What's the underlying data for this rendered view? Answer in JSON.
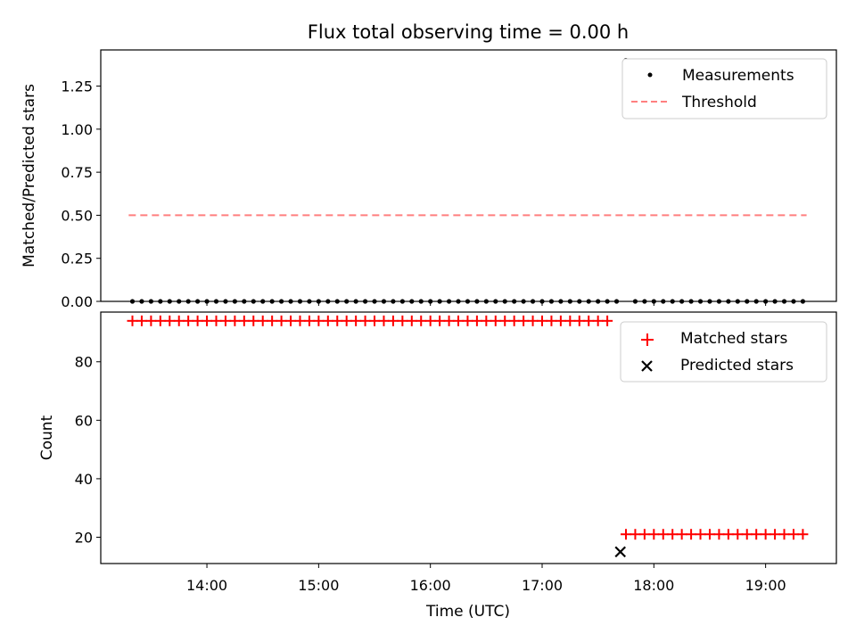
{
  "chart_data": [
    {
      "type": "scatter",
      "title": "Flux total observing time = 0.00 h",
      "xlabel": "",
      "ylabel": "Matched/Predicted stars",
      "xlim": [
        "13:03",
        "19:38"
      ],
      "ylim": [
        0,
        1.46
      ],
      "yticks": [
        "0.00",
        "0.25",
        "0.50",
        "0.75",
        "1.00",
        "1.25"
      ],
      "ytick_values": [
        0,
        0.25,
        0.5,
        0.75,
        1.0,
        1.25
      ],
      "legend": "upper right",
      "series": [
        {
          "name": "Measurements",
          "marker": "dot",
          "color": "#000000",
          "x": [
            "13:20",
            "13:25",
            "13:30",
            "13:35",
            "13:40",
            "13:45",
            "13:50",
            "13:55",
            "14:00",
            "14:05",
            "14:10",
            "14:15",
            "14:20",
            "14:25",
            "14:30",
            "14:35",
            "14:40",
            "14:45",
            "14:50",
            "14:55",
            "15:00",
            "15:05",
            "15:10",
            "15:15",
            "15:20",
            "15:25",
            "15:30",
            "15:35",
            "15:40",
            "15:45",
            "15:50",
            "15:55",
            "16:00",
            "16:05",
            "16:10",
            "16:15",
            "16:20",
            "16:25",
            "16:30",
            "16:35",
            "16:40",
            "16:45",
            "16:50",
            "16:55",
            "17:00",
            "17:05",
            "17:10",
            "17:15",
            "17:20",
            "17:25",
            "17:30",
            "17:35",
            "17:40",
            "17:45",
            "17:50",
            "17:55",
            "18:00",
            "18:05",
            "18:10",
            "18:15",
            "18:20",
            "18:25",
            "18:30",
            "18:35",
            "18:40",
            "18:45",
            "18:50",
            "18:55",
            "19:00",
            "19:05",
            "19:10",
            "19:15",
            "19:20"
          ],
          "y": [
            0,
            0,
            0,
            0,
            0,
            0,
            0,
            0,
            0,
            0,
            0,
            0,
            0,
            0,
            0,
            0,
            0,
            0,
            0,
            0,
            0,
            0,
            0,
            0,
            0,
            0,
            0,
            0,
            0,
            0,
            0,
            0,
            0,
            0,
            0,
            0,
            0,
            0,
            0,
            0,
            0,
            0,
            0,
            0,
            0,
            0,
            0,
            0,
            0,
            0,
            0,
            0,
            0,
            1.4,
            0,
            0,
            0,
            0,
            0,
            0,
            0,
            0,
            0,
            0,
            0,
            0,
            0,
            0,
            0,
            0,
            0,
            0,
            0
          ]
        },
        {
          "name": "Threshold",
          "line_style": "dashed",
          "color": "#ff7f7f",
          "x": [
            "13:18",
            "19:22"
          ],
          "y": [
            0.5,
            0.5
          ]
        }
      ]
    },
    {
      "type": "scatter",
      "title": "",
      "xlabel": "Time (UTC)",
      "ylabel": "Count",
      "xlim": [
        "13:03",
        "19:38"
      ],
      "ylim": [
        11,
        97
      ],
      "xticks": [
        "14:00",
        "15:00",
        "16:00",
        "17:00",
        "18:00",
        "19:00"
      ],
      "yticks": [
        "20",
        "40",
        "60",
        "80"
      ],
      "ytick_values": [
        20,
        40,
        60,
        80
      ],
      "legend": "upper right",
      "series": [
        {
          "name": "Matched stars",
          "marker": "plus",
          "color": "#ff0000",
          "x": [
            "13:20",
            "13:25",
            "13:30",
            "13:35",
            "13:40",
            "13:45",
            "13:50",
            "13:55",
            "14:00",
            "14:05",
            "14:10",
            "14:15",
            "14:20",
            "14:25",
            "14:30",
            "14:35",
            "14:40",
            "14:45",
            "14:50",
            "14:55",
            "15:00",
            "15:05",
            "15:10",
            "15:15",
            "15:20",
            "15:25",
            "15:30",
            "15:35",
            "15:40",
            "15:45",
            "15:50",
            "15:55",
            "16:00",
            "16:05",
            "16:10",
            "16:15",
            "16:20",
            "16:25",
            "16:30",
            "16:35",
            "16:40",
            "16:45",
            "16:50",
            "16:55",
            "17:00",
            "17:05",
            "17:10",
            "17:15",
            "17:20",
            "17:25",
            "17:30",
            "17:35",
            "17:45",
            "17:50",
            "17:55",
            "18:00",
            "18:05",
            "18:10",
            "18:15",
            "18:20",
            "18:25",
            "18:30",
            "18:35",
            "18:40",
            "18:45",
            "18:50",
            "18:55",
            "19:00",
            "19:05",
            "19:10",
            "19:15",
            "19:20"
          ],
          "y": [
            94,
            94,
            94,
            94,
            94,
            94,
            94,
            94,
            94,
            94,
            94,
            94,
            94,
            94,
            94,
            94,
            94,
            94,
            94,
            94,
            94,
            94,
            94,
            94,
            94,
            94,
            94,
            94,
            94,
            94,
            94,
            94,
            94,
            94,
            94,
            94,
            94,
            94,
            94,
            94,
            94,
            94,
            94,
            94,
            94,
            94,
            94,
            94,
            94,
            94,
            94,
            94,
            21,
            21,
            21,
            21,
            21,
            21,
            21,
            21,
            21,
            21,
            21,
            21,
            21,
            21,
            21,
            21,
            21,
            21,
            21,
            21
          ]
        },
        {
          "name": "Predicted stars",
          "marker": "x",
          "color": "#000000",
          "x": [
            "17:42"
          ],
          "y": [
            15
          ]
        }
      ]
    }
  ]
}
